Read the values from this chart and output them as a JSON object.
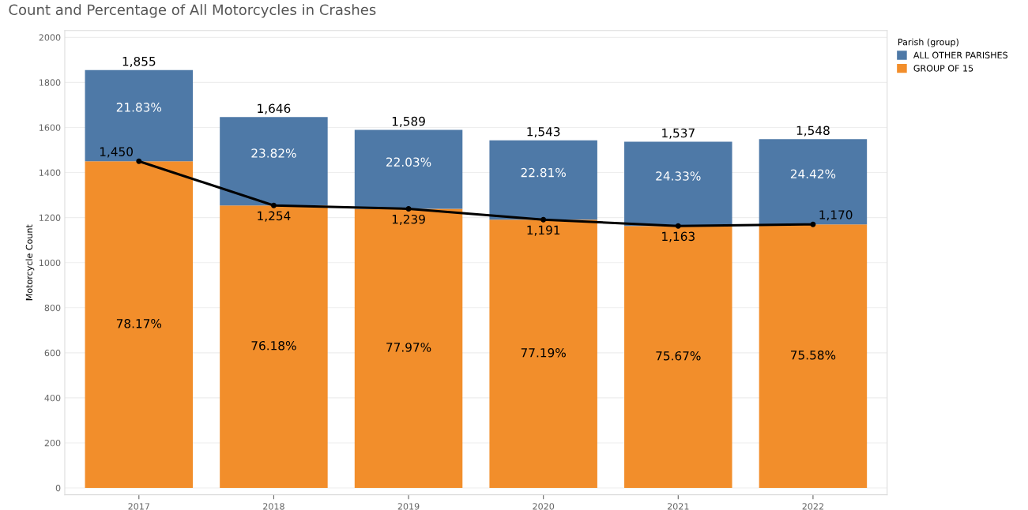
{
  "chart_data": {
    "type": "bar",
    "title": "Count and Percentage of All Motorcycles in Crashes",
    "ylabel": "Motorcycle Count",
    "legend_title": "Parish (group)",
    "categories": [
      "2017",
      "2018",
      "2019",
      "2020",
      "2021",
      "2022"
    ],
    "stacked": true,
    "series": [
      {
        "name": "GROUP OF 15",
        "color": "#f28e2b",
        "values": [
          1450,
          1254,
          1239,
          1191,
          1163,
          1170
        ]
      },
      {
        "name": "ALL OTHER PARISHES",
        "color": "#4e79a7",
        "values": [
          405,
          392,
          350,
          352,
          374,
          378
        ]
      },
      {
        "type": "line",
        "color": "#000000",
        "values": [
          1450,
          1254,
          1239,
          1191,
          1163,
          1170
        ],
        "value_labels": [
          "1,450",
          "1,254",
          "1,239",
          "1,191",
          "1,163",
          "1,170"
        ],
        "marker": "circle"
      }
    ],
    "annotations": [
      "78.17%",
      "76.18%",
      "77.97%",
      "77.19%",
      "75.67%",
      "75.58%",
      "21.83%",
      "23.82%",
      "22.03%",
      "22.81%",
      "24.33%",
      "24.42%"
    ],
    "totals": [
      "1,855",
      "1,646",
      "1,589",
      "1,543",
      "1,537",
      "1,548"
    ],
    "ylim": [
      -30,
      2030
    ],
    "yticks": [
      0,
      200,
      400,
      600,
      800,
      1000,
      1200,
      1400,
      1600,
      1800,
      2000
    ],
    "grid": "y",
    "legend": "top right"
  }
}
